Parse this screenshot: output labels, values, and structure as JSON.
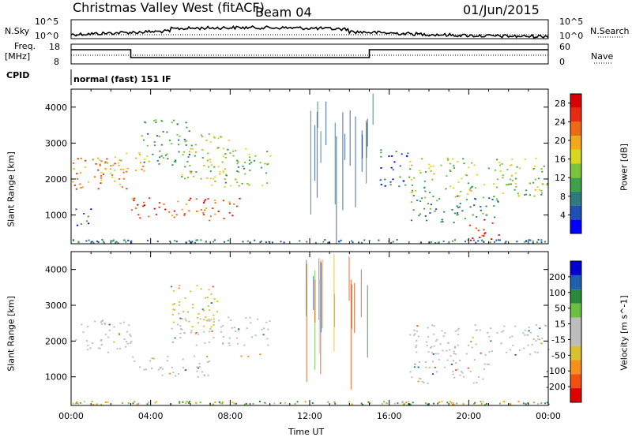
{
  "header": {
    "station": "Christmas Valley West (fitACF)",
    "beam": "Beam 04",
    "date": "01/Jun/2015"
  },
  "nsky": {
    "label": "N.Sky",
    "top": "10^5",
    "bottom": "10^0",
    "right_label": "N.Search",
    "right_top": "10^5",
    "right_bottom": "10^0"
  },
  "freq": {
    "label_line1": "Freq.",
    "label_line2": "[MHz]",
    "top": "18",
    "bottom": "8",
    "right_label": "Nave",
    "right_top": "60",
    "right_bottom": "0"
  },
  "cpid": {
    "label": "CPID",
    "value": "normal (fast) 151 IF"
  },
  "colors": {
    "power": [
      "#0000ff",
      "#1f4fb4",
      "#2f7a7a",
      "#3ea04a",
      "#7cc23a",
      "#d8d820",
      "#f4a81a",
      "#ef6a14",
      "#e82a10",
      "#d80000"
    ],
    "velocity": [
      "#e00000",
      "#f05010",
      "#f7901a",
      "#d8c030",
      "#bdbdbd",
      "#bdbdbd",
      "#6ac040",
      "#2a8a3a",
      "#1f5fb0",
      "#0000d0"
    ]
  },
  "chart_data": [
    {
      "type": "heatmap",
      "name": "power",
      "xlabel": "",
      "ylabel": "Slant Range [km]",
      "xlim": [
        0,
        24
      ],
      "ylim": [
        200,
        4500
      ],
      "yticks": [
        "1000",
        "2000",
        "3000",
        "4000"
      ],
      "colorbar": {
        "label": "Power [dB]",
        "ticks": [
          "4",
          "8",
          "12",
          "16",
          "20",
          "24",
          "28"
        ],
        "range": [
          0,
          30
        ]
      },
      "regions": [
        {
          "x": [
            0.0,
            3.0
          ],
          "y": [
            1700,
            2600
          ],
          "level": 22
        },
        {
          "x": [
            0.0,
            1.0
          ],
          "y": [
            700,
            1200
          ],
          "level": 6
        },
        {
          "x": [
            1.0,
            4.0
          ],
          "y": [
            2200,
            2800
          ],
          "level": 18
        },
        {
          "x": [
            3.0,
            8.5
          ],
          "y": [
            850,
            1500
          ],
          "level": 24
        },
        {
          "x": [
            5.5,
            8.0
          ],
          "y": [
            2000,
            3300
          ],
          "level": 16
        },
        {
          "x": [
            7.0,
            10.0
          ],
          "y": [
            1800,
            2900
          ],
          "level": 12
        },
        {
          "x": [
            3.5,
            6.0
          ],
          "y": [
            2400,
            3700
          ],
          "level": 10
        },
        {
          "x": [
            15.5,
            17.0
          ],
          "y": [
            1800,
            2900
          ],
          "level": 6
        },
        {
          "x": [
            17.0,
            24.0
          ],
          "y": [
            1500,
            2600
          ],
          "level": 14
        },
        {
          "x": [
            17.0,
            21.5
          ],
          "y": [
            800,
            1600
          ],
          "level": 8
        },
        {
          "x": [
            20.0,
            21.5
          ],
          "y": [
            300,
            900
          ],
          "level": 26
        }
      ]
    },
    {
      "type": "heatmap",
      "name": "velocity",
      "xlabel": "Time UT",
      "ylabel": "Slant Range [km]",
      "xlim": [
        0,
        24
      ],
      "ylim": [
        200,
        4500
      ],
      "xticks": [
        "00:00",
        "04:00",
        "08:00",
        "12:00",
        "16:00",
        "20:00",
        "00:00"
      ],
      "yticks": [
        "1000",
        "2000",
        "3000",
        "4000"
      ],
      "colorbar": {
        "label": "Velocity [m s^-1]",
        "ticks": [
          "200",
          "100",
          "50",
          "15",
          "-15",
          "-50",
          "-100",
          "-200"
        ]
      },
      "regions": [
        {
          "x": [
            0.0,
            3.0
          ],
          "y": [
            1700,
            2600
          ],
          "level": 0
        },
        {
          "x": [
            3.0,
            7.0
          ],
          "y": [
            1000,
            1600
          ],
          "level": 0
        },
        {
          "x": [
            5.0,
            10.0
          ],
          "y": [
            1900,
            2700
          ],
          "level": 0
        },
        {
          "x": [
            8.5,
            9.5
          ],
          "y": [
            1500,
            1700
          ],
          "level": -60
        },
        {
          "x": [
            17.0,
            24.0
          ],
          "y": [
            1600,
            2500
          ],
          "level": 0
        },
        {
          "x": [
            17.0,
            21.0
          ],
          "y": [
            800,
            1500
          ],
          "level": 0
        },
        {
          "x": [
            5.0,
            7.5
          ],
          "y": [
            2400,
            3600
          ],
          "level": -30
        }
      ]
    }
  ]
}
